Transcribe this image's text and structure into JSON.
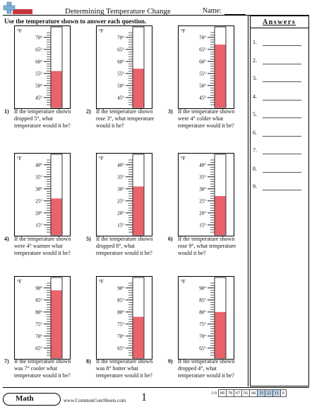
{
  "header": {
    "title": "Determining Temperature Change",
    "name_label": "Name:"
  },
  "instructions": "Use the temperature shown to answer each question.",
  "answers": {
    "title": "Answers",
    "numbers": [
      "1.",
      "2.",
      "3.",
      "4.",
      "5.",
      "6.",
      "7.",
      "8.",
      "9."
    ]
  },
  "thermometers": [
    {
      "unit": "°F",
      "ticks": [
        "70°",
        "65°",
        "60°",
        "55°",
        "50°",
        "45°"
      ],
      "max": 72,
      "min": 42,
      "value": 56
    },
    {
      "unit": "°F",
      "ticks": [
        "70°",
        "65°",
        "60°",
        "55°",
        "50°",
        "45°"
      ],
      "max": 72,
      "min": 42,
      "value": 57
    },
    {
      "unit": "°F",
      "ticks": [
        "70°",
        "65°",
        "60°",
        "55°",
        "50°",
        "45°"
      ],
      "max": 72,
      "min": 42,
      "value": 67
    },
    {
      "unit": "°F",
      "ticks": [
        "40°",
        "35°",
        "30°",
        "25°",
        "20°",
        "15°"
      ],
      "max": 42,
      "min": 12,
      "value": 26
    },
    {
      "unit": "°F",
      "ticks": [
        "40°",
        "35°",
        "30°",
        "25°",
        "20°",
        "15°"
      ],
      "max": 42,
      "min": 12,
      "value": 31
    },
    {
      "unit": "°F",
      "ticks": [
        "40°",
        "35°",
        "30°",
        "25°",
        "20°",
        "15°"
      ],
      "max": 42,
      "min": 12,
      "value": 27
    },
    {
      "unit": "°F",
      "ticks": [
        "90°",
        "85°",
        "80°",
        "75°",
        "70°",
        "65°"
      ],
      "max": 92,
      "min": 62,
      "value": 89
    },
    {
      "unit": "°F",
      "ticks": [
        "90°",
        "85°",
        "80°",
        "75°",
        "70°",
        "65°"
      ],
      "max": 92,
      "min": 62,
      "value": 78
    },
    {
      "unit": "°F",
      "ticks": [
        "90°",
        "85°",
        "80°",
        "75°",
        "70°",
        "65°"
      ],
      "max": 92,
      "min": 62,
      "value": 80
    }
  ],
  "questions": [
    {
      "num": "1)",
      "text": "If the temperature shown dropped 5°, what temperature would it be?"
    },
    {
      "num": "2)",
      "text": "If the temperature shown rose 3°, what temperature would it be?"
    },
    {
      "num": "3)",
      "text": "If the temperature shown were 4° colder what temperature would it be?"
    },
    {
      "num": "4)",
      "text": "If the temperature shown were 4° warmer what temperature would it be?"
    },
    {
      "num": "5)",
      "text": "If the temperature shown dropped 8°, what temperature would it be?"
    },
    {
      "num": "6)",
      "text": "If the temperature shown rose 9°, what temperature would it be?"
    },
    {
      "num": "7)",
      "text": "If the temperature shown was 7° cooler what temperature would it be?"
    },
    {
      "num": "8)",
      "text": "If the temperature shown was 8° hotter what temperature would it be?"
    },
    {
      "num": "9)",
      "text": "If the temperature shown dropped 4°, what temperature would it be?"
    }
  ],
  "footer": {
    "subject": "Math",
    "site": "www.CommonCoreSheets.com",
    "page": "1",
    "score_label": "1-9",
    "scores": [
      "89",
      "78",
      "67",
      "56",
      "44",
      "33",
      "22",
      "11",
      "0"
    ]
  },
  "colors": {
    "mercury": "#e8636a",
    "logo_blue": "#7db3d6",
    "logo_red": "#c8353b"
  }
}
